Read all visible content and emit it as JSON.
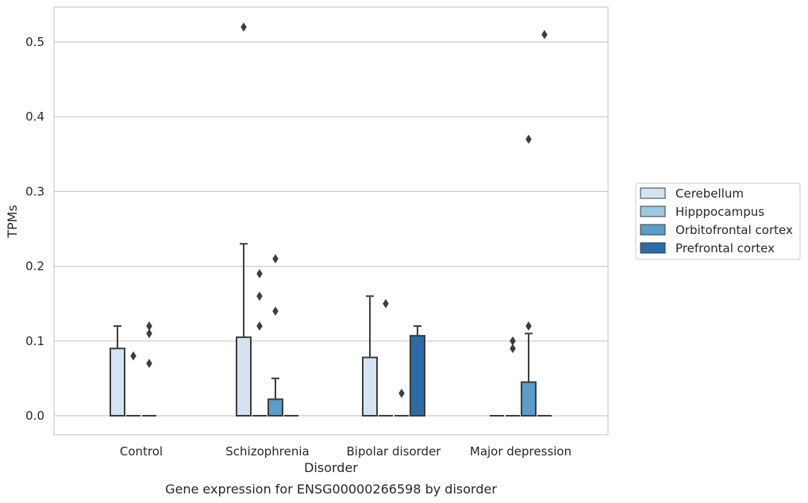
{
  "chart_data": {
    "type": "box",
    "title": "",
    "caption": "Gene expression for ENSG00000266598 by disorder",
    "xlabel": "Disorder",
    "ylabel": "TPMs",
    "ylim": [
      -0.025,
      0.548
    ],
    "yticks": [
      0.0,
      0.1,
      0.2,
      0.3,
      0.4,
      0.5
    ],
    "ytick_labels": [
      "0.0",
      "0.1",
      "0.2",
      "0.3",
      "0.4",
      "0.5"
    ],
    "grid": "horizontal",
    "legend_position": "right",
    "categories": [
      "Control",
      "Schizophrenia",
      "Bipolar disorder",
      "Major depression"
    ],
    "series": [
      {
        "name": "Cerebellum",
        "color": "#d3e3f2",
        "boxes": [
          {
            "q1": 0.0,
            "median": 0.0,
            "q3": 0.09,
            "whisker_low": 0.0,
            "whisker_high": 0.12,
            "outliers": []
          },
          {
            "q1": 0.0,
            "median": 0.0,
            "q3": 0.105,
            "whisker_low": 0.0,
            "whisker_high": 0.23,
            "outliers": [
              0.52
            ]
          },
          {
            "q1": 0.0,
            "median": 0.0,
            "q3": 0.078,
            "whisker_low": 0.0,
            "whisker_high": 0.16,
            "outliers": []
          },
          {
            "q1": 0.0,
            "median": 0.0,
            "q3": 0.0,
            "whisker_low": 0.0,
            "whisker_high": 0.0,
            "outliers": []
          }
        ]
      },
      {
        "name": "Hipppocampus",
        "color": "#9ac8e0",
        "boxes": [
          {
            "q1": 0.0,
            "median": 0.0,
            "q3": 0.0,
            "whisker_low": 0.0,
            "whisker_high": 0.0,
            "outliers": [
              0.08
            ]
          },
          {
            "q1": 0.0,
            "median": 0.0,
            "q3": 0.0,
            "whisker_low": 0.0,
            "whisker_high": 0.0,
            "outliers": [
              0.12,
              0.16,
              0.19
            ]
          },
          {
            "q1": 0.0,
            "median": 0.0,
            "q3": 0.0,
            "whisker_low": 0.0,
            "whisker_high": 0.0,
            "outliers": [
              0.15
            ]
          },
          {
            "q1": 0.0,
            "median": 0.0,
            "q3": 0.0,
            "whisker_low": 0.0,
            "whisker_high": 0.0,
            "outliers": [
              0.09,
              0.1
            ]
          }
        ]
      },
      {
        "name": "Orbitofrontal cortex",
        "color": "#5a9dc8",
        "boxes": [
          {
            "q1": 0.0,
            "median": 0.0,
            "q3": 0.0,
            "whisker_low": 0.0,
            "whisker_high": 0.0,
            "outliers": [
              0.07,
              0.11,
              0.12
            ]
          },
          {
            "q1": 0.0,
            "median": 0.0,
            "q3": 0.022,
            "whisker_low": 0.0,
            "whisker_high": 0.05,
            "outliers": [
              0.14,
              0.21
            ]
          },
          {
            "q1": 0.0,
            "median": 0.0,
            "q3": 0.0,
            "whisker_low": 0.0,
            "whisker_high": 0.0,
            "outliers": [
              0.03
            ]
          },
          {
            "q1": 0.0,
            "median": 0.0,
            "q3": 0.045,
            "whisker_low": 0.0,
            "whisker_high": 0.11,
            "outliers": [
              0.12,
              0.37
            ]
          }
        ]
      },
      {
        "name": "Prefrontal cortex",
        "color": "#2b6ba8",
        "boxes": [
          null,
          {
            "q1": 0.0,
            "median": 0.0,
            "q3": 0.0,
            "whisker_low": 0.0,
            "whisker_high": 0.0,
            "outliers": []
          },
          {
            "q1": 0.0,
            "median": 0.0,
            "q3": 0.107,
            "whisker_low": 0.0,
            "whisker_high": 0.12,
            "outliers": []
          },
          {
            "q1": 0.0,
            "median": 0.0,
            "q3": 0.0,
            "whisker_low": 0.0,
            "whisker_high": 0.0,
            "outliers": [
              0.51
            ]
          }
        ]
      }
    ]
  }
}
